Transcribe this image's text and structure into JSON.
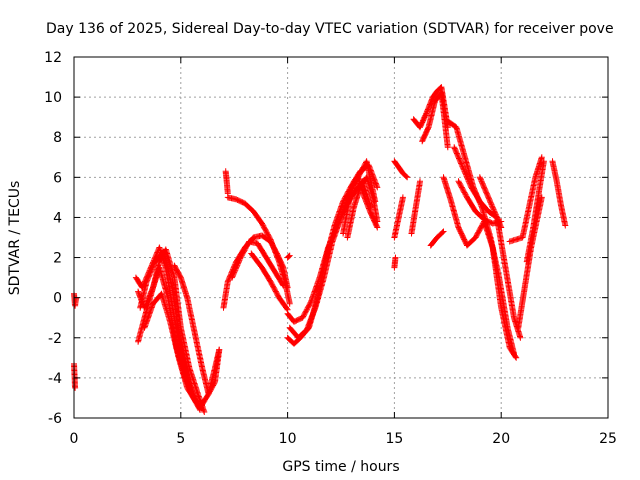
{
  "chart_data": {
    "type": "scatter",
    "title": "Day 136 of 2025, Sidereal Day-to-day VTEC variation (SDTVAR) for receiver pove",
    "xlabel": "GPS time / hours",
    "ylabel": "SDTVAR / TECUs",
    "xlim": [
      0,
      25
    ],
    "ylim": [
      -6,
      12
    ],
    "x_ticks": [
      "0",
      "5",
      "10",
      "15",
      "20",
      "25"
    ],
    "y_ticks": [
      "-6",
      "-4",
      "-2",
      "0",
      "2",
      "4",
      "6",
      "8",
      "10",
      "12"
    ],
    "grid": true,
    "marker": "+",
    "marker_color": "#ff0000",
    "series": [
      {
        "name": "s1",
        "x": [
          0.0,
          0.05,
          0.1
        ],
        "y": [
          0.2,
          -0.4,
          0.0
        ]
      },
      {
        "name": "s2",
        "x": [
          0.0,
          0.05
        ],
        "y": [
          -3.3,
          -4.5
        ]
      },
      {
        "name": "s3",
        "x": [
          2.9,
          3.2,
          3.6,
          4.0,
          4.3,
          4.7,
          5.1,
          5.5,
          5.9,
          6.3,
          6.6,
          6.8
        ],
        "y": [
          1.0,
          0.5,
          1.5,
          2.5,
          1.5,
          -1.0,
          -3.0,
          -4.8,
          -5.5,
          -4.8,
          -3.5,
          -2.6
        ]
      },
      {
        "name": "s4",
        "x": [
          3.0,
          3.3,
          3.7,
          4.0,
          4.4,
          4.8,
          5.2,
          5.6,
          5.9
        ],
        "y": [
          -2.2,
          -1.0,
          0.5,
          1.5,
          0.0,
          -2.5,
          -4.0,
          -5.0,
          -5.6
        ]
      },
      {
        "name": "s5",
        "x": [
          3.0,
          3.3,
          3.7,
          4.0,
          4.3,
          4.7,
          5.0,
          5.4,
          5.8,
          6.1
        ],
        "y": [
          0.3,
          -0.5,
          0.5,
          1.8,
          2.4,
          1.0,
          -1.5,
          -3.5,
          -4.8,
          -5.7
        ]
      },
      {
        "name": "s6",
        "x": [
          3.1,
          3.4,
          3.8,
          4.2,
          4.6,
          5.0,
          5.4,
          5.8
        ],
        "y": [
          -0.5,
          0.8,
          1.8,
          2.3,
          0.5,
          -2.5,
          -4.3,
          -5.3
        ]
      },
      {
        "name": "s7",
        "x": [
          3.3,
          3.7,
          4.1,
          4.5,
          4.9,
          5.3,
          5.7,
          6.0
        ],
        "y": [
          -1.5,
          -0.3,
          0.2,
          -1.2,
          -3.0,
          -4.5,
          -5.2,
          -5.5
        ]
      },
      {
        "name": "s8",
        "x": [
          4.7,
          5.0,
          5.3,
          5.6,
          6.0,
          6.3,
          6.6,
          6.8
        ],
        "y": [
          1.6,
          1.0,
          0.0,
          -1.5,
          -3.5,
          -4.8,
          -4.2,
          -2.6
        ]
      },
      {
        "name": "s9",
        "x": [
          7.0,
          7.2,
          7.6,
          8.0,
          8.4,
          8.8,
          9.2,
          9.5,
          9.8,
          10.0
        ],
        "y": [
          -0.5,
          0.8,
          1.8,
          2.5,
          3.0,
          3.1,
          2.8,
          2.2,
          1.5,
          0.5
        ]
      },
      {
        "name": "s10",
        "x": [
          7.2,
          7.6,
          8.0,
          8.4,
          8.8,
          9.2,
          9.6,
          9.9,
          10.1
        ],
        "y": [
          5.0,
          4.9,
          4.7,
          4.3,
          3.7,
          2.9,
          1.8,
          0.7,
          -0.3
        ]
      },
      {
        "name": "s11",
        "x": [
          7.1,
          7.15,
          7.2
        ],
        "y": [
          6.3,
          5.8,
          5.2
        ]
      },
      {
        "name": "s12",
        "x": [
          7.4,
          7.8,
          8.2,
          8.6,
          9.0,
          9.4,
          9.8
        ],
        "y": [
          1.0,
          2.0,
          2.8,
          2.7,
          2.0,
          1.3,
          0.6
        ]
      },
      {
        "name": "s13",
        "x": [
          8.3,
          8.8,
          9.2,
          9.6,
          10.0
        ],
        "y": [
          2.2,
          1.5,
          0.8,
          0.0,
          -0.6
        ]
      },
      {
        "name": "s14",
        "x": [
          10.0,
          10.1
        ],
        "y": [
          2.0,
          2.1
        ]
      },
      {
        "name": "s15",
        "x": [
          10.0,
          10.3,
          10.6,
          11.0,
          11.4,
          11.8,
          12.2,
          12.6,
          13.0,
          13.4,
          13.8,
          14.2
        ],
        "y": [
          -2.0,
          -2.3,
          -2.0,
          -1.5,
          0.0,
          2.0,
          3.6,
          4.8,
          5.6,
          6.3,
          6.6,
          5.5
        ]
      },
      {
        "name": "s16",
        "x": [
          10.0,
          10.3,
          10.7,
          11.1,
          11.5,
          11.9,
          12.3,
          12.7,
          13.1,
          13.5,
          13.9
        ],
        "y": [
          -0.8,
          -1.2,
          -1.0,
          -0.2,
          1.0,
          2.5,
          3.5,
          4.5,
          5.2,
          5.8,
          4.5
        ]
      },
      {
        "name": "s17",
        "x": [
          10.1,
          10.5,
          10.9,
          11.3,
          11.7,
          12.1,
          12.5,
          12.9,
          13.3,
          13.7,
          14.1
        ],
        "y": [
          -1.5,
          -2.0,
          -1.6,
          -0.5,
          1.0,
          2.8,
          4.0,
          5.2,
          6.0,
          6.8,
          4.8
        ]
      },
      {
        "name": "s18",
        "x": [
          12.8,
          13.1,
          13.4,
          13.7,
          14.0,
          14.2
        ],
        "y": [
          3.0,
          4.5,
          5.5,
          6.0,
          5.0,
          3.8
        ]
      },
      {
        "name": "s19",
        "x": [
          12.6,
          13.0,
          13.3,
          13.6,
          13.9,
          14.2
        ],
        "y": [
          3.2,
          5.5,
          6.0,
          5.0,
          4.2,
          3.5
        ]
      },
      {
        "name": "s20",
        "x": [
          15.0,
          15.2,
          15.4,
          15.6
        ],
        "y": [
          6.8,
          6.5,
          6.2,
          6.0
        ]
      },
      {
        "name": "s21",
        "x": [
          15.0,
          15.2,
          15.4
        ],
        "y": [
          3.0,
          4.0,
          5.0
        ]
      },
      {
        "name": "s22",
        "x": [
          15.0,
          15.05
        ],
        "y": [
          1.5,
          2.0
        ]
      },
      {
        "name": "s23",
        "x": [
          15.8,
          16.0,
          16.2
        ],
        "y": [
          3.2,
          4.5,
          5.8
        ]
      },
      {
        "name": "s24",
        "x": [
          15.9,
          16.2,
          16.5,
          16.8,
          17.0,
          17.2,
          17.5
        ],
        "y": [
          8.9,
          8.5,
          9.2,
          10.0,
          10.3,
          10.5,
          8.5
        ]
      },
      {
        "name": "s25",
        "x": [
          16.3,
          16.6,
          16.9,
          17.2,
          17.5
        ],
        "y": [
          7.8,
          8.5,
          9.8,
          10.2,
          7.5
        ]
      },
      {
        "name": "s26",
        "x": [
          16.7,
          17.0,
          17.3
        ],
        "y": [
          2.6,
          3.0,
          3.3
        ]
      },
      {
        "name": "s27",
        "x": [
          17.3,
          17.6,
          18.0,
          18.4,
          18.8,
          19.2,
          19.6,
          20.0,
          20.4,
          20.7
        ],
        "y": [
          6.0,
          5.0,
          3.5,
          2.6,
          3.0,
          3.8,
          2.5,
          -0.5,
          -2.5,
          -3.0
        ]
      },
      {
        "name": "s28",
        "x": [
          17.5,
          17.9,
          18.3,
          18.7,
          19.1,
          19.5,
          19.9,
          20.3,
          20.6
        ],
        "y": [
          8.8,
          8.5,
          7.0,
          5.5,
          4.5,
          3.0,
          1.0,
          -1.5,
          -2.8
        ]
      },
      {
        "name": "s29",
        "x": [
          17.8,
          18.2,
          18.6,
          19.0,
          19.4,
          19.8,
          20.2,
          20.6,
          20.9
        ],
        "y": [
          7.5,
          6.5,
          5.5,
          4.8,
          4.3,
          4.0,
          1.5,
          -1.0,
          -2.0
        ]
      },
      {
        "name": "s30",
        "x": [
          18.0,
          18.4,
          18.8,
          19.2,
          19.6,
          20.0
        ],
        "y": [
          5.8,
          5.0,
          4.3,
          3.9,
          3.7,
          3.8
        ]
      },
      {
        "name": "s31",
        "x": [
          19.0,
          19.4,
          19.8,
          20.0
        ],
        "y": [
          6.0,
          5.0,
          4.0,
          3.5
        ]
      },
      {
        "name": "s32",
        "x": [
          20.4,
          20.7,
          21.0,
          21.3,
          21.6,
          21.9
        ],
        "y": [
          2.8,
          2.9,
          3.0,
          4.5,
          6.0,
          7.0
        ]
      },
      {
        "name": "s33",
        "x": [
          20.8,
          21.1,
          21.4,
          21.7,
          21.9
        ],
        "y": [
          -1.5,
          0.5,
          2.5,
          4.0,
          5.0
        ]
      },
      {
        "name": "s34",
        "x": [
          21.2,
          21.5,
          21.8,
          22.0
        ],
        "y": [
          1.8,
          3.5,
          5.5,
          6.8
        ]
      },
      {
        "name": "s35",
        "x": [
          22.4,
          22.6,
          22.8,
          23.0
        ],
        "y": [
          6.8,
          5.8,
          4.6,
          3.6
        ]
      }
    ]
  }
}
